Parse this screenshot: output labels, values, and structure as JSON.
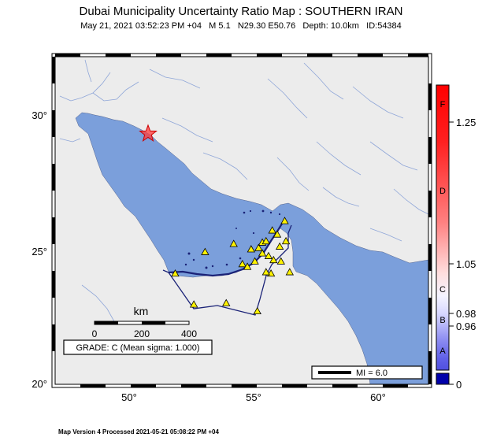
{
  "title": "Dubai Municipality Uncertainty Ratio Map : SOUTHERN IRAN",
  "event": {
    "date": "May 21, 2021 03:52:23 PM +04",
    "magnitude": "M 5.1",
    "location": "N29.30 E50.76",
    "depth": "Depth: 10.0km",
    "id": "ID:54384"
  },
  "axes": {
    "lat_labels": [
      "30°",
      "25°",
      "20°"
    ],
    "lon_labels": [
      "50°",
      "55°",
      "60°"
    ]
  },
  "scalebar": {
    "unit": "km",
    "ticks": [
      "0",
      "200",
      "400"
    ]
  },
  "grade": "GRADE: C (Mean sigma: 1.000)",
  "mi_legend": "MI = 6.0",
  "colorbar": {
    "letters": [
      "F",
      "D",
      "C",
      "B",
      "A"
    ],
    "values": [
      "1.25",
      "1.05",
      "0.98",
      "0.96",
      "0"
    ]
  },
  "footer": "Map Version 4 Processed 2021-05-21 05:08:22 PM +04",
  "colors": {
    "sea": "#7b9fdb",
    "land": "#ececec",
    "river": "#8fa6d8",
    "boundary": "#1a2277",
    "epicenter": "#ff3b3b",
    "station": "#fff200"
  },
  "stations": [
    {
      "lon": 52.6,
      "lat": 22.95
    },
    {
      "lon": 53.9,
      "lat": 23.0
    },
    {
      "lon": 55.15,
      "lat": 22.7
    },
    {
      "lon": 51.85,
      "lat": 24.1
    },
    {
      "lon": 53.05,
      "lat": 24.9
    },
    {
      "lon": 54.2,
      "lat": 25.2
    },
    {
      "lon": 54.55,
      "lat": 24.45
    },
    {
      "lon": 54.75,
      "lat": 24.35
    },
    {
      "lon": 54.9,
      "lat": 25.0
    },
    {
      "lon": 55.05,
      "lat": 24.55
    },
    {
      "lon": 55.2,
      "lat": 25.05
    },
    {
      "lon": 55.35,
      "lat": 24.85
    },
    {
      "lon": 55.35,
      "lat": 25.25
    },
    {
      "lon": 55.5,
      "lat": 25.3
    },
    {
      "lon": 55.6,
      "lat": 24.75
    },
    {
      "lon": 55.7,
      "lat": 24.1
    },
    {
      "lon": 55.75,
      "lat": 25.7
    },
    {
      "lon": 55.8,
      "lat": 24.6
    },
    {
      "lon": 55.95,
      "lat": 25.55
    },
    {
      "lon": 56.05,
      "lat": 25.1
    },
    {
      "lon": 56.1,
      "lat": 24.55
    },
    {
      "lon": 56.25,
      "lat": 26.05
    },
    {
      "lon": 56.3,
      "lat": 25.3
    },
    {
      "lon": 56.45,
      "lat": 24.15
    },
    {
      "lon": 55.5,
      "lat": 24.15
    }
  ]
}
